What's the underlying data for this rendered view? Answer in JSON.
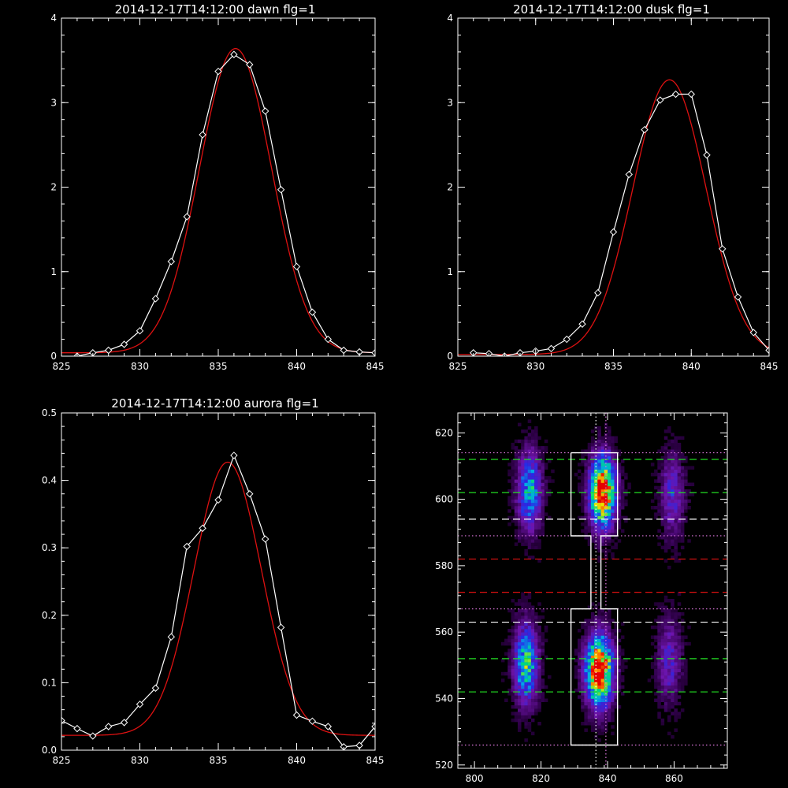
{
  "colors": {
    "background": "#000000",
    "axes": "#ffffff",
    "observed": "#ffffff",
    "fit": "#dd1111",
    "guide_green": "#22dd22",
    "guide_white": "#ffffff",
    "guide_red": "#dd1111",
    "guide_magenta": "#dd77dd"
  },
  "chart_data": [
    {
      "id": "dawn",
      "type": "line",
      "title": "2014-12-17T14:12:00 dawn flg=1",
      "xlim": [
        825,
        845
      ],
      "ylim": [
        0,
        4
      ],
      "x_ticks": [
        "825",
        "830",
        "835",
        "840",
        "845"
      ],
      "y_ticks": [
        "0",
        "1",
        "2",
        "3",
        "4"
      ],
      "series": [
        {
          "marker": "diamond",
          "color": "#ffffff",
          "x": [
            826,
            827,
            828,
            829,
            830,
            831,
            832,
            833,
            834,
            835,
            836,
            837,
            838,
            839,
            840,
            841,
            842,
            843,
            844,
            845
          ],
          "y": [
            0.0,
            0.04,
            0.07,
            0.14,
            0.3,
            0.68,
            1.12,
            1.65,
            2.62,
            3.37,
            3.57,
            3.45,
            2.9,
            1.97,
            1.06,
            0.52,
            0.2,
            0.07,
            0.05,
            0.04
          ]
        }
      ],
      "fit": {
        "color": "#dd1111",
        "x0": 836.1,
        "amplitude": 3.6,
        "sigma": 2.3,
        "offset": 0.04
      }
    },
    {
      "id": "dusk",
      "type": "line",
      "title": "2014-12-17T14:12:00 dusk flg=1",
      "xlim": [
        825,
        845
      ],
      "ylim": [
        0,
        4
      ],
      "x_ticks": [
        "825",
        "830",
        "835",
        "840",
        "845"
      ],
      "y_ticks": [
        "0",
        "1",
        "2",
        "3",
        "4"
      ],
      "series": [
        {
          "marker": "diamond",
          "color": "#ffffff",
          "x": [
            826,
            827,
            828,
            829,
            830,
            831,
            832,
            833,
            834,
            835,
            836,
            837,
            838,
            839,
            840,
            841,
            842,
            843,
            844,
            845
          ],
          "y": [
            0.04,
            0.03,
            0.0,
            0.04,
            0.06,
            0.09,
            0.2,
            0.38,
            0.75,
            1.47,
            2.15,
            2.68,
            3.03,
            3.1,
            3.1,
            2.38,
            1.27,
            0.7,
            0.28,
            0.07
          ]
        }
      ],
      "fit": {
        "color": "#dd1111",
        "x0": 838.6,
        "amplitude": 3.25,
        "sigma": 2.35,
        "offset": 0.02
      }
    },
    {
      "id": "aurora",
      "type": "line",
      "title": "2014-12-17T14:12:00 aurora flg=1",
      "xlim": [
        825,
        845
      ],
      "ylim": [
        0,
        0.5
      ],
      "x_ticks": [
        "825",
        "830",
        "835",
        "840",
        "845"
      ],
      "y_ticks": [
        "0.0",
        "0.1",
        "0.2",
        "0.3",
        "0.4",
        "0.5"
      ],
      "series": [
        {
          "marker": "diamond",
          "color": "#ffffff",
          "x": [
            825,
            826,
            827,
            828,
            829,
            830,
            831,
            832,
            833,
            834,
            835,
            836,
            837,
            838,
            839,
            840,
            841,
            842,
            843,
            844,
            845
          ],
          "y": [
            0.044,
            0.032,
            0.021,
            0.035,
            0.041,
            0.068,
            0.092,
            0.168,
            0.302,
            0.329,
            0.371,
            0.437,
            0.38,
            0.313,
            0.182,
            0.052,
            0.043,
            0.035,
            0.005,
            0.007,
            0.035
          ]
        }
      ],
      "fit": {
        "color": "#dd1111",
        "x0": 835.6,
        "amplitude": 0.405,
        "sigma": 2.15,
        "offset": 0.022
      }
    },
    {
      "id": "image",
      "type": "heatmap",
      "title": "",
      "xlim": [
        795,
        876
      ],
      "ylim": [
        519,
        626
      ],
      "x_ticks": [
        "800",
        "820",
        "840",
        "860"
      ],
      "y_ticks": [
        "520",
        "540",
        "560",
        "580",
        "600",
        "620"
      ],
      "blobs": [
        {
          "x": 816,
          "y": 602,
          "sx": 2.6,
          "sy": 8.5,
          "amp": 0.55
        },
        {
          "x": 838,
          "y": 602,
          "sx": 2.8,
          "sy": 7.5,
          "amp": 1.0
        },
        {
          "x": 859,
          "y": 601,
          "sx": 2.6,
          "sy": 9.0,
          "amp": 0.32
        },
        {
          "x": 815,
          "y": 550,
          "sx": 2.6,
          "sy": 8.5,
          "amp": 0.62
        },
        {
          "x": 837,
          "y": 548,
          "sx": 2.9,
          "sy": 7.5,
          "amp": 1.05
        },
        {
          "x": 858,
          "y": 551,
          "sx": 2.6,
          "sy": 9.0,
          "amp": 0.3
        }
      ],
      "guides_y": [
        {
          "y": 612,
          "color": "#22dd22",
          "style": "dashed"
        },
        {
          "y": 602,
          "color": "#22dd22",
          "style": "dashed"
        },
        {
          "y": 594,
          "color": "#ffffff",
          "style": "dashed"
        },
        {
          "y": 582,
          "color": "#dd1111",
          "style": "dashed"
        },
        {
          "y": 572,
          "color": "#dd1111",
          "style": "dashed"
        },
        {
          "y": 563,
          "color": "#ffffff",
          "style": "dashed"
        },
        {
          "y": 552,
          "color": "#22dd22",
          "style": "dashed"
        },
        {
          "y": 542,
          "color": "#22dd22",
          "style": "dashed"
        },
        {
          "y": 614,
          "color": "#dd77dd",
          "style": "dotted"
        },
        {
          "y": 589,
          "color": "#dd77dd",
          "style": "dotted"
        },
        {
          "y": 567,
          "color": "#dd77dd",
          "style": "dotted"
        },
        {
          "y": 526,
          "color": "#dd77dd",
          "style": "dotted"
        }
      ],
      "guides_x": [
        {
          "x": 836.5,
          "color": "#ffffff",
          "style": "dotted"
        },
        {
          "x": 839.5,
          "color": "#dd77dd",
          "style": "dotted"
        }
      ],
      "box": {
        "color": "#ffffff",
        "path": [
          [
            829,
            614
          ],
          [
            843,
            614
          ],
          [
            843,
            589
          ],
          [
            838,
            589
          ],
          [
            838,
            567
          ],
          [
            843,
            567
          ],
          [
            843,
            526
          ],
          [
            829,
            526
          ],
          [
            829,
            567
          ],
          [
            835,
            567
          ],
          [
            835,
            589
          ],
          [
            829,
            589
          ],
          [
            829,
            614
          ]
        ]
      }
    }
  ]
}
